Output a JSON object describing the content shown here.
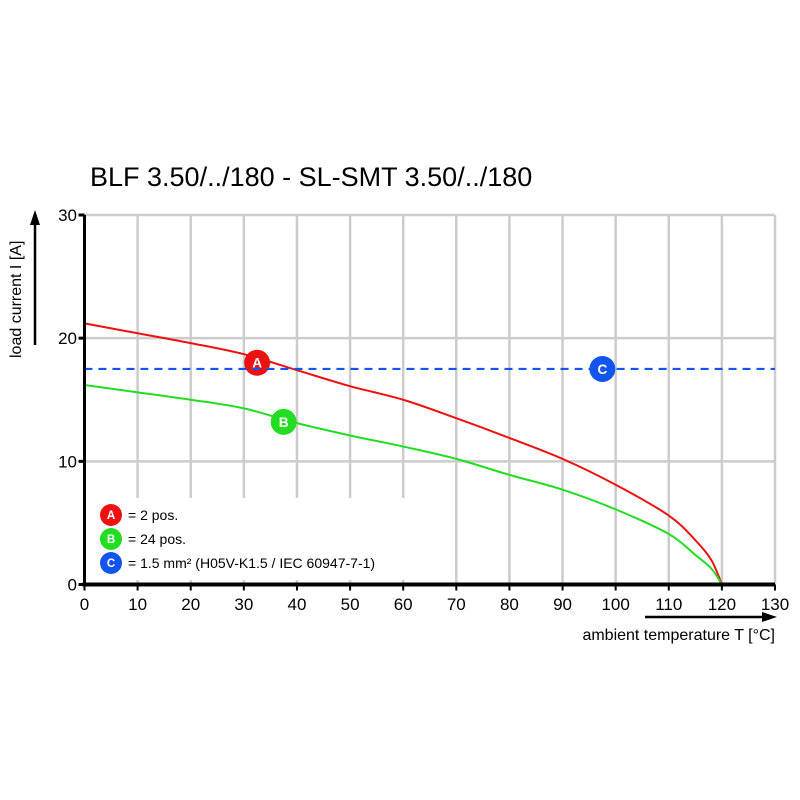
{
  "chart_data": {
    "type": "line",
    "title": "BLF 3.50/../180 - SL-SMT 3.50/../180",
    "xlabel": "ambient temperature T [°C]",
    "ylabel": "load current I [A]",
    "xlim": [
      0,
      130
    ],
    "ylim": [
      0,
      30
    ],
    "xticks": [
      0,
      10,
      20,
      30,
      40,
      50,
      60,
      70,
      80,
      90,
      100,
      110,
      120,
      130
    ],
    "yticks": [
      0,
      10,
      20,
      30
    ],
    "grid": true,
    "legend_position": "bottom-left",
    "series": [
      {
        "marker": "A",
        "color": "#ee1111",
        "style": "solid",
        "label_at": [
          32.5,
          18.0
        ],
        "x": [
          0,
          10,
          20,
          30,
          40,
          50,
          60,
          70,
          80,
          90,
          100,
          110,
          115,
          118,
          120
        ],
        "y": [
          21.2,
          20.4,
          19.6,
          18.7,
          17.4,
          16.1,
          15.0,
          13.5,
          11.9,
          10.2,
          8.1,
          5.6,
          3.6,
          2.0,
          0
        ]
      },
      {
        "marker": "B",
        "color": "#22dd22",
        "style": "solid",
        "label_at": [
          37.5,
          13.2
        ],
        "x": [
          0,
          10,
          20,
          30,
          40,
          50,
          60,
          70,
          80,
          90,
          100,
          110,
          115,
          118,
          120
        ],
        "y": [
          16.2,
          15.6,
          15.0,
          14.3,
          13.1,
          12.1,
          11.2,
          10.2,
          8.9,
          7.7,
          6.1,
          4.1,
          2.4,
          1.3,
          0
        ]
      },
      {
        "marker": "C",
        "color": "#1155ee",
        "style": "dashed",
        "label_at": [
          97.5,
          17.5
        ],
        "x": [
          0,
          130
        ],
        "y": [
          17.5,
          17.5
        ]
      }
    ],
    "legend": [
      {
        "marker": "A",
        "text": "= 2 pos."
      },
      {
        "marker": "B",
        "text": "= 24 pos."
      },
      {
        "marker": "C",
        "text": "= 1.5 mm² (H05V-K1.5 / IEC 60947-7-1)"
      }
    ]
  }
}
